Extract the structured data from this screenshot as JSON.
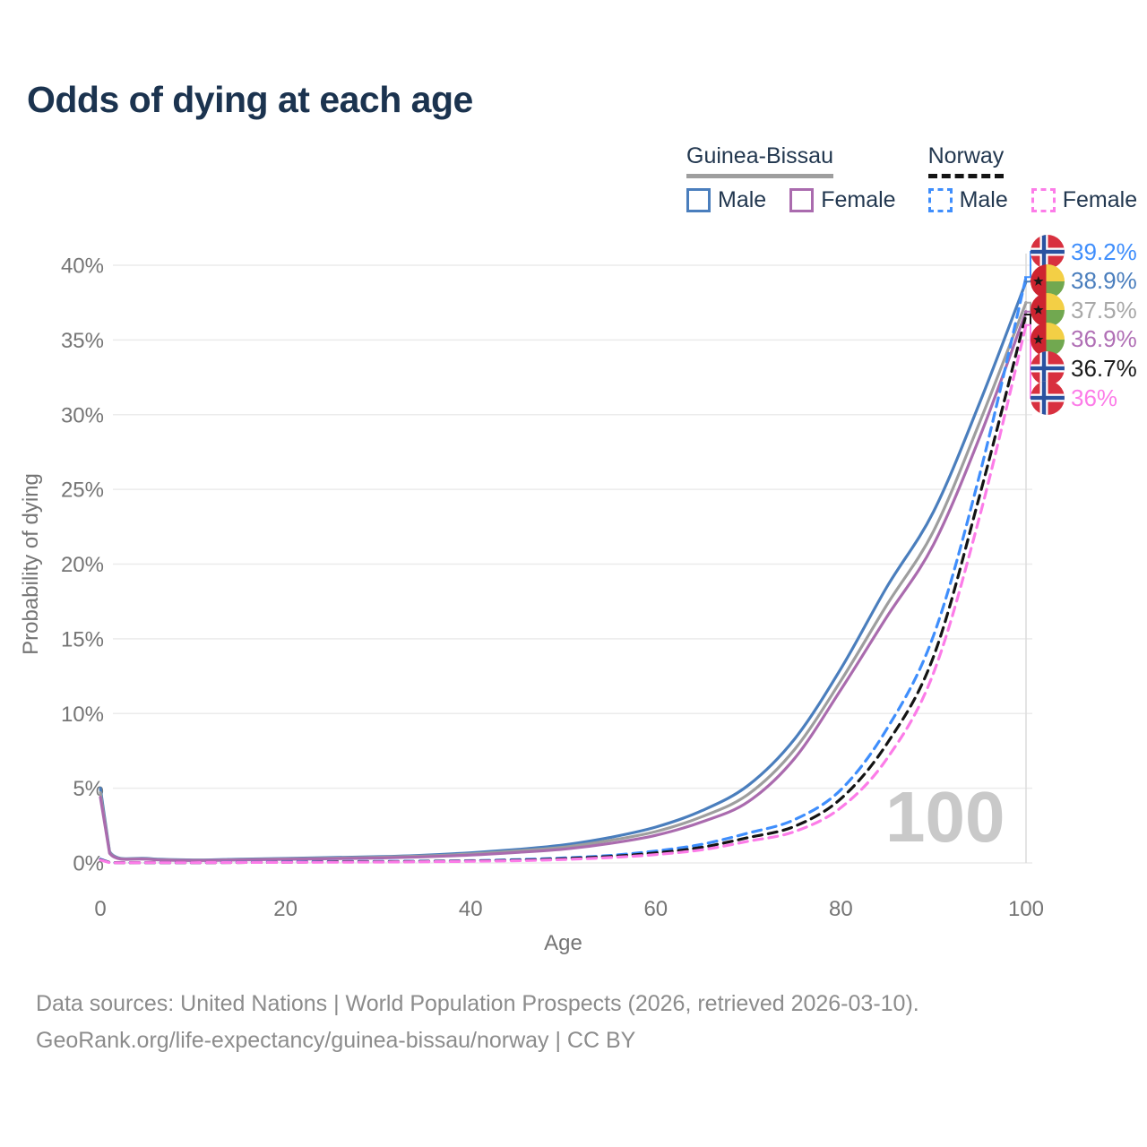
{
  "title": "Odds of dying at each age",
  "legend": {
    "groups": [
      {
        "name": "Guinea-Bissau",
        "items": [
          {
            "label": "Male",
            "color": "#4a7ebd",
            "dashed": false
          },
          {
            "label": "Female",
            "color": "#aa6bae",
            "dashed": false
          }
        ]
      },
      {
        "name": "Norway",
        "items": [
          {
            "label": "Male",
            "color": "#3f8efc",
            "dashed": true
          },
          {
            "label": "Female",
            "color": "#fc7ce8",
            "dashed": true
          }
        ]
      }
    ]
  },
  "watermark_age": "100",
  "footer": {
    "line1": "Data sources: United Nations | World Population Prospects (2026, retrieved 2026-03-10).",
    "line2": "GeoRank.org/life-expectancy/guinea-bissau/norway | CC BY"
  },
  "colors": {
    "title": "#1b334f",
    "navy": "#22374f",
    "tick": "#757575",
    "grid": "#ebebeb",
    "hover_line": "#dcdcdc",
    "watermark": "#c9c9c9",
    "footer": "#8c8c8c",
    "gb_male": "#4a7ebd",
    "gb_overall": "#9e9e9e",
    "gb_female": "#aa6bae",
    "no_male": "#3f8efc",
    "no_overall": "#141414",
    "no_female": "#fc7ce8"
  },
  "chart_data": {
    "type": "line",
    "title": "Odds of dying at each age",
    "xlabel": "Age",
    "ylabel": "Probability of dying",
    "xlim": [
      0,
      100
    ],
    "ylim": [
      0,
      40
    ],
    "grid": true,
    "legend_position": "top-right",
    "x_ticks": [
      0,
      20,
      40,
      60,
      80,
      100
    ],
    "y_tick_labels": [
      "0%",
      "5%",
      "10%",
      "15%",
      "20%",
      "25%",
      "30%",
      "35%",
      "40%"
    ],
    "hover_age": 100,
    "ages": [
      0,
      1,
      5,
      10,
      15,
      20,
      25,
      30,
      35,
      40,
      45,
      50,
      55,
      60,
      65,
      70,
      75,
      80,
      85,
      90,
      95,
      100
    ],
    "series": [
      {
        "name": "Guinea-Bissau Male",
        "country": "guinea-bissau",
        "sex": "male",
        "color": "#4a7ebd",
        "dashed": false,
        "end_label": "38.9%",
        "values": [
          5.0,
          0.75,
          0.3,
          0.2,
          0.25,
          0.3,
          0.36,
          0.42,
          0.52,
          0.68,
          0.9,
          1.2,
          1.7,
          2.4,
          3.5,
          5.2,
          8.3,
          13.0,
          18.5,
          23.5,
          30.8,
          38.9
        ]
      },
      {
        "name": "Guinea-Bissau Both sexes",
        "country": "guinea-bissau",
        "sex": "both",
        "color": "#9e9e9e",
        "dashed": false,
        "end_label": "37.5%",
        "values": [
          4.7,
          0.7,
          0.27,
          0.18,
          0.22,
          0.27,
          0.32,
          0.38,
          0.47,
          0.6,
          0.8,
          1.05,
          1.5,
          2.1,
          3.1,
          4.6,
          7.6,
          12.2,
          17.3,
          22.2,
          29.5,
          37.5
        ]
      },
      {
        "name": "Guinea-Bissau Female",
        "country": "guinea-bissau",
        "sex": "female",
        "color": "#aa6bae",
        "dashed": false,
        "end_label": "36.9%",
        "values": [
          4.4,
          0.65,
          0.25,
          0.16,
          0.2,
          0.24,
          0.28,
          0.33,
          0.41,
          0.53,
          0.7,
          0.92,
          1.3,
          1.85,
          2.75,
          4.1,
          7.0,
          11.6,
          16.5,
          21.3,
          28.5,
          36.9
        ]
      },
      {
        "name": "Norway Male",
        "country": "norway",
        "sex": "male",
        "color": "#3f8efc",
        "dashed": true,
        "end_label": "39.2%",
        "values": [
          0.25,
          0.03,
          0.02,
          0.02,
          0.04,
          0.07,
          0.09,
          0.1,
          0.12,
          0.15,
          0.22,
          0.33,
          0.5,
          0.8,
          1.25,
          2.0,
          2.9,
          4.9,
          9.0,
          15.2,
          26.0,
          39.2
        ]
      },
      {
        "name": "Norway Both sexes",
        "country": "norway",
        "sex": "both",
        "color": "#141414",
        "dashed": true,
        "end_label": "36.7%",
        "values": [
          0.22,
          0.03,
          0.02,
          0.02,
          0.03,
          0.05,
          0.07,
          0.08,
          0.1,
          0.13,
          0.18,
          0.28,
          0.43,
          0.67,
          1.05,
          1.7,
          2.45,
          4.3,
          8.0,
          13.8,
          24.6,
          36.7
        ]
      },
      {
        "name": "Norway Female",
        "country": "norway",
        "sex": "female",
        "color": "#fc7ce8",
        "dashed": true,
        "end_label": "36%",
        "values": [
          0.2,
          0.02,
          0.02,
          0.02,
          0.03,
          0.04,
          0.05,
          0.06,
          0.08,
          0.11,
          0.15,
          0.23,
          0.36,
          0.56,
          0.88,
          1.45,
          2.1,
          3.7,
          7.0,
          12.7,
          23.2,
          36.0
        ]
      }
    ],
    "end_labels": [
      {
        "flag": "norway",
        "text": "39.2%",
        "color": "#3f8efc",
        "value": 39.2
      },
      {
        "flag": "guinea-bissau",
        "text": "38.9%",
        "color": "#4a7ebd",
        "value": 38.9
      },
      {
        "flag": "guinea-bissau",
        "text": "37.5%",
        "color": "#a8a8a8",
        "value": 37.5
      },
      {
        "flag": "guinea-bissau",
        "text": "36.9%",
        "color": "#b06fb5",
        "value": 36.9
      },
      {
        "flag": "norway",
        "text": "36.7%",
        "color": "#1a1a1a",
        "value": 36.7
      },
      {
        "flag": "norway",
        "text": "36%",
        "color": "#fc7ce8",
        "value": 36
      }
    ]
  }
}
